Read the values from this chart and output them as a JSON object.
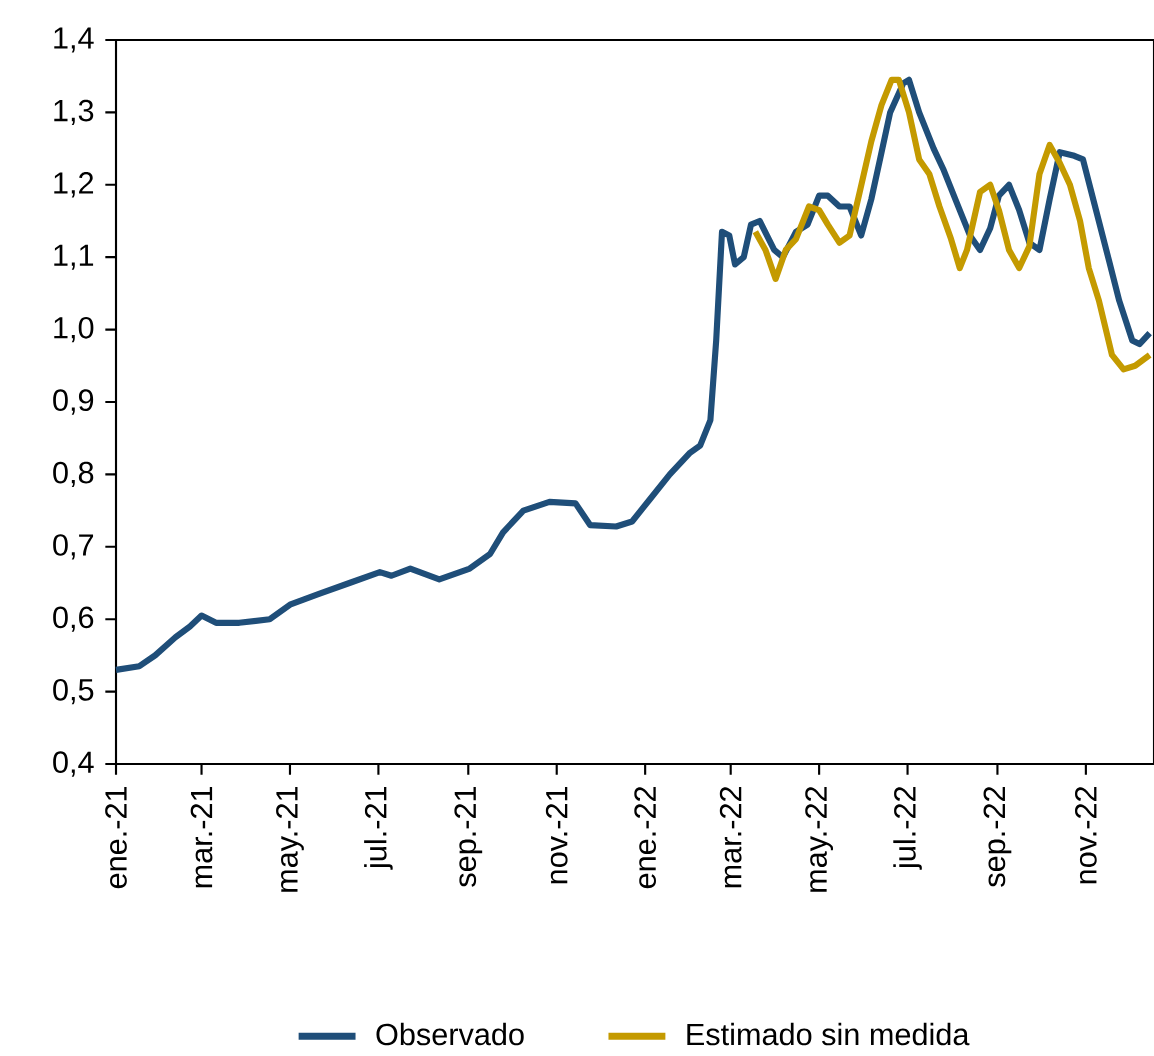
{
  "chart_data": {
    "type": "line",
    "ylim": [
      0.4,
      1.4
    ],
    "yticks": [
      {
        "value": 0.4,
        "label": "0,4"
      },
      {
        "value": 0.5,
        "label": "0,5"
      },
      {
        "value": 0.6,
        "label": "0,6"
      },
      {
        "value": 0.7,
        "label": "0,7"
      },
      {
        "value": 0.8,
        "label": "0,8"
      },
      {
        "value": 0.9,
        "label": "0,9"
      },
      {
        "value": 1.0,
        "label": "1,0"
      },
      {
        "value": 1.1,
        "label": "1,1"
      },
      {
        "value": 1.2,
        "label": "1,2"
      },
      {
        "value": 1.3,
        "label": "1,3"
      },
      {
        "value": 1.4,
        "label": "1,4"
      }
    ],
    "xlim": [
      "2021-01-01",
      "2022-12-18"
    ],
    "xticks": [
      {
        "value": "2021-01-01",
        "label": "ene.-21"
      },
      {
        "value": "2021-03-01",
        "label": "mar.-21"
      },
      {
        "value": "2021-05-01",
        "label": "may.-21"
      },
      {
        "value": "2021-07-01",
        "label": "jul.-21"
      },
      {
        "value": "2021-09-01",
        "label": "sep.-21"
      },
      {
        "value": "2021-11-01",
        "label": "nov.-21"
      },
      {
        "value": "2022-01-01",
        "label": "ene.-22"
      },
      {
        "value": "2022-03-01",
        "label": "mar.-22"
      },
      {
        "value": "2022-05-01",
        "label": "may.-22"
      },
      {
        "value": "2022-07-01",
        "label": "jul.-22"
      },
      {
        "value": "2022-09-01",
        "label": "sep.-22"
      },
      {
        "value": "2022-11-01",
        "label": "nov.-22"
      }
    ],
    "grid": false,
    "legend": "bottom",
    "marker": "none",
    "line_style": "solid",
    "series": [
      {
        "name": "Observado",
        "color": "#1f4e79",
        "x": [
          "2021-01-01",
          "2021-01-17",
          "2021-01-28",
          "2021-02-11",
          "2021-02-21",
          "2021-03-01",
          "2021-03-11",
          "2021-03-27",
          "2021-04-17",
          "2021-05-01",
          "2021-05-21",
          "2021-06-11",
          "2021-07-02",
          "2021-07-10",
          "2021-07-23",
          "2021-08-12",
          "2021-09-02",
          "2021-09-16",
          "2021-09-25",
          "2021-10-09",
          "2021-10-27",
          "2021-11-14",
          "2021-11-24",
          "2021-12-12",
          "2021-12-23",
          "2022-01-04",
          "2022-01-18",
          "2022-02-01",
          "2022-02-08",
          "2022-02-15",
          "2022-02-19",
          "2022-02-23",
          "2022-02-28",
          "2022-03-04",
          "2022-03-10",
          "2022-03-15",
          "2022-03-21",
          "2022-03-31",
          "2022-04-06",
          "2022-04-15",
          "2022-04-23",
          "2022-05-01",
          "2022-05-07",
          "2022-05-15",
          "2022-05-22",
          "2022-05-30",
          "2022-06-06",
          "2022-06-12",
          "2022-06-19",
          "2022-06-28",
          "2022-07-02",
          "2022-07-09",
          "2022-07-19",
          "2022-07-26",
          "2022-08-03",
          "2022-08-13",
          "2022-08-20",
          "2022-08-27",
          "2022-09-02",
          "2022-09-09",
          "2022-09-16",
          "2022-09-23",
          "2022-09-30",
          "2022-10-07",
          "2022-10-14",
          "2022-10-24",
          "2022-10-30",
          "2022-11-08",
          "2022-11-17",
          "2022-11-24",
          "2022-12-03",
          "2022-12-08",
          "2022-12-15"
        ],
        "values": [
          0.53,
          0.535,
          0.55,
          0.575,
          0.59,
          0.605,
          0.595,
          0.595,
          0.6,
          0.62,
          0.635,
          0.65,
          0.665,
          0.66,
          0.67,
          0.655,
          0.67,
          0.69,
          0.72,
          0.75,
          0.762,
          0.76,
          0.73,
          0.728,
          0.735,
          0.765,
          0.8,
          0.83,
          0.84,
          0.875,
          0.985,
          1.135,
          1.13,
          1.09,
          1.1,
          1.145,
          1.15,
          1.11,
          1.1,
          1.135,
          1.145,
          1.185,
          1.185,
          1.17,
          1.17,
          1.13,
          1.18,
          1.235,
          1.3,
          1.34,
          1.345,
          1.3,
          1.25,
          1.22,
          1.18,
          1.13,
          1.11,
          1.14,
          1.185,
          1.2,
          1.165,
          1.12,
          1.11,
          1.18,
          1.245,
          1.24,
          1.235,
          1.165,
          1.095,
          1.04,
          0.985,
          0.98,
          0.995
        ]
      },
      {
        "name": "Estimado sin medida",
        "color": "#c49a00",
        "x": [
          "2022-03-18",
          "2022-03-25",
          "2022-04-01",
          "2022-04-08",
          "2022-04-15",
          "2022-04-24",
          "2022-05-01",
          "2022-05-07",
          "2022-05-15",
          "2022-05-22",
          "2022-05-29",
          "2022-06-06",
          "2022-06-13",
          "2022-06-20",
          "2022-06-25",
          "2022-07-02",
          "2022-07-09",
          "2022-07-16",
          "2022-07-23",
          "2022-07-31",
          "2022-08-06",
          "2022-08-11",
          "2022-08-20",
          "2022-08-27",
          "2022-09-02",
          "2022-09-09",
          "2022-09-16",
          "2022-09-23",
          "2022-09-30",
          "2022-10-07",
          "2022-10-14",
          "2022-10-21",
          "2022-10-28",
          "2022-11-03",
          "2022-11-10",
          "2022-11-19",
          "2022-11-27",
          "2022-12-05",
          "2022-12-15"
        ],
        "values": [
          1.135,
          1.11,
          1.07,
          1.11,
          1.125,
          1.17,
          1.165,
          1.145,
          1.12,
          1.13,
          1.19,
          1.26,
          1.31,
          1.345,
          1.345,
          1.3,
          1.235,
          1.215,
          1.17,
          1.125,
          1.085,
          1.11,
          1.19,
          1.2,
          1.165,
          1.11,
          1.085,
          1.115,
          1.215,
          1.255,
          1.23,
          1.2,
          1.15,
          1.085,
          1.04,
          0.965,
          0.945,
          0.95,
          0.965
        ]
      }
    ]
  }
}
